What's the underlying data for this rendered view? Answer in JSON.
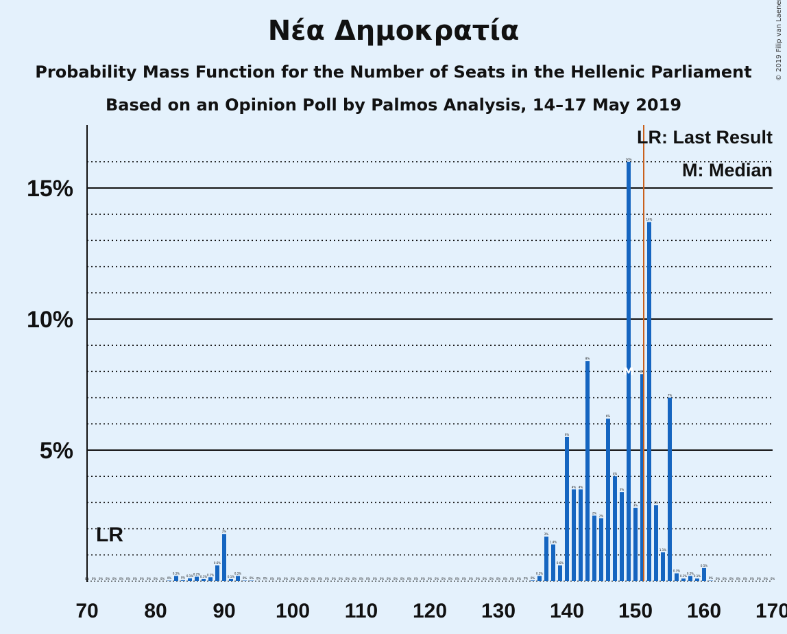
{
  "title": "Νέα Δημοκρατία",
  "subtitle": "Probability Mass Function for the Number of Seats in the Hellenic Parliament",
  "subtitle2": "Based on an Opinion Poll by Palmos Analysis, 14–17 May 2019",
  "copyright": "© 2019 Filip van Laenen",
  "legend": {
    "lr": "LR: Last Result",
    "m": "M: Median"
  },
  "markers": {
    "lr_label": "LR",
    "median_label": "M"
  },
  "colors": {
    "background": "#e4f1fc",
    "bar": "#1565c0",
    "last_result_line": "#c8601c",
    "axis": "#111111"
  },
  "chart_data": {
    "type": "bar",
    "title": "Νέα Δημοκρατία",
    "xlabel": "",
    "ylabel": "",
    "xlim": [
      70,
      170
    ],
    "ylim": [
      0,
      17.5
    ],
    "x_ticks": [
      70,
      80,
      90,
      100,
      110,
      120,
      130,
      140,
      150,
      160,
      170
    ],
    "y_ticks": [
      {
        "value": 5,
        "label": "5%"
      },
      {
        "value": 10,
        "label": "10%"
      },
      {
        "value": 15,
        "label": "15%"
      }
    ],
    "dotted_gridlines": [
      1,
      2,
      3,
      4,
      6,
      7,
      8,
      9,
      11,
      12,
      13,
      14,
      16
    ],
    "last_result": 151,
    "median": 149,
    "lr_label_seat": 75,
    "seats": [
      70,
      71,
      72,
      73,
      74,
      75,
      76,
      77,
      78,
      79,
      80,
      81,
      82,
      83,
      84,
      85,
      86,
      87,
      88,
      89,
      90,
      91,
      92,
      93,
      94,
      95,
      96,
      97,
      98,
      99,
      100,
      101,
      102,
      103,
      104,
      105,
      106,
      107,
      108,
      109,
      110,
      111,
      112,
      113,
      114,
      115,
      116,
      117,
      118,
      119,
      120,
      121,
      122,
      123,
      124,
      125,
      126,
      127,
      128,
      129,
      130,
      131,
      132,
      133,
      134,
      135,
      136,
      137,
      138,
      139,
      140,
      141,
      142,
      143,
      144,
      145,
      146,
      147,
      148,
      149,
      150,
      151,
      152,
      153,
      154,
      155,
      156,
      157,
      158,
      159,
      160,
      161,
      162,
      163,
      164,
      165,
      166,
      167,
      168,
      169,
      170
    ],
    "values": [
      0,
      0,
      0,
      0,
      0,
      0,
      0,
      0,
      0,
      0,
      0,
      0,
      0.02,
      0.2,
      0.04,
      0.11,
      0.17,
      0.08,
      0.15,
      0.6,
      1.8,
      0.08,
      0.2,
      0.02,
      0.02,
      0.01,
      0.01,
      0,
      0,
      0,
      0,
      0,
      0,
      0,
      0,
      0,
      0,
      0,
      0,
      0,
      0,
      0,
      0,
      0,
      0,
      0,
      0,
      0,
      0,
      0,
      0,
      0,
      0,
      0,
      0,
      0,
      0,
      0,
      0,
      0,
      0,
      0,
      0,
      0,
      0.01,
      0.03,
      0.2,
      1.7,
      1.4,
      0.6,
      5.5,
      3.5,
      3.5,
      8.4,
      2.5,
      2.4,
      6.2,
      4.0,
      3.4,
      16.0,
      2.8,
      7.9,
      13.7,
      2.9,
      1.1,
      7.0,
      0.3,
      0.1,
      0.2,
      0.1,
      0.5,
      0.02,
      0,
      0,
      0,
      0,
      0,
      0,
      0,
      0,
      0
    ],
    "labels": [
      "0%",
      "0%",
      "0%",
      "0%",
      "0%",
      "0%",
      "0%",
      "0%",
      "0%",
      "0%",
      "0%",
      "0%",
      "0%",
      "0.2%",
      "0%",
      "0.1%",
      "0.2%",
      "0.1%",
      "0.1%",
      "0.6%",
      "2%",
      "0.1%",
      "0.2%",
      "0%",
      "0%",
      "0%",
      "0%",
      "0%",
      "0%",
      "0%",
      "0%",
      "0%",
      "0%",
      "0%",
      "0%",
      "0%",
      "0%",
      "0%",
      "0%",
      "0%",
      "0%",
      "0%",
      "0%",
      "0%",
      "0%",
      "0%",
      "0%",
      "0%",
      "0%",
      "0%",
      "0%",
      "0%",
      "0%",
      "0%",
      "0%",
      "0%",
      "0%",
      "0%",
      "0%",
      "0%",
      "0%",
      "0%",
      "0%",
      "0%",
      "0%",
      "0%",
      "0.2%",
      "2%",
      "1.4%",
      "0.6%",
      "6%",
      "4%",
      "4%",
      "8%",
      "2%",
      "2%",
      "6%",
      "4%",
      "3%",
      "16%",
      "3%",
      "8%",
      "14%",
      "3%",
      "1.1%",
      "7%",
      "0.3%",
      "0.1%",
      "0.2%",
      "0.1%",
      "0.5%",
      "0%",
      "0%",
      "0%",
      "0%",
      "0%",
      "0%",
      "0%",
      "0%",
      "0%",
      "0%"
    ]
  }
}
